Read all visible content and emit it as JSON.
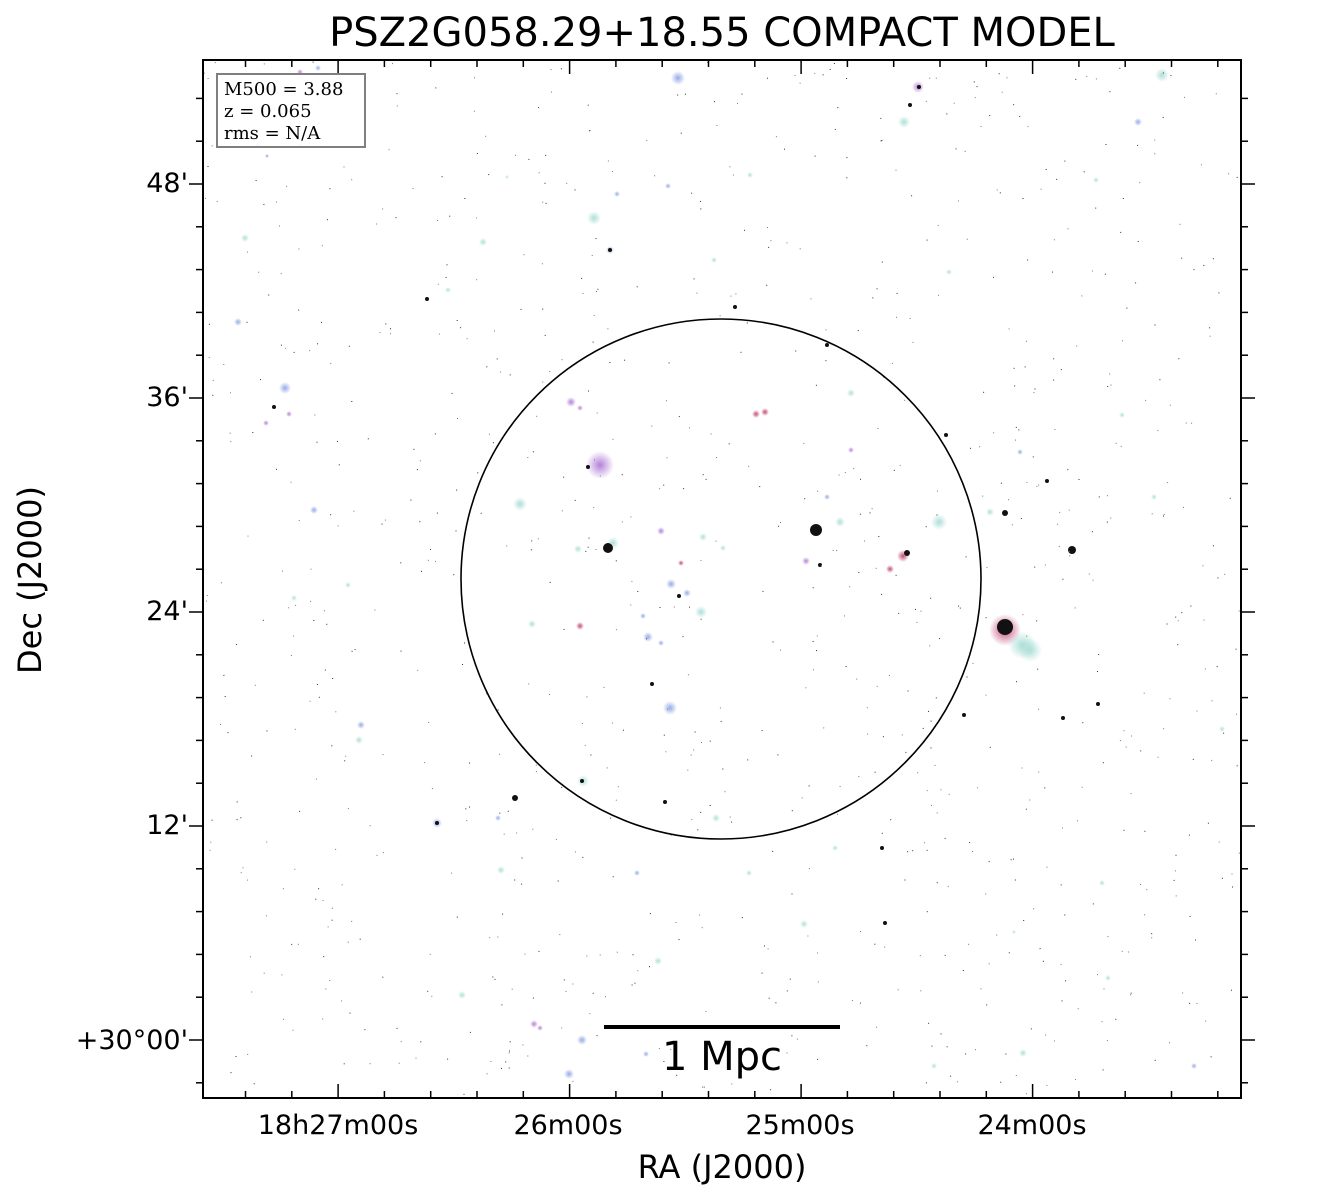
{
  "figure": {
    "title": "PSZ2G058.29+18.55 COMPACT MODEL",
    "xlabel": "RA (J2000)",
    "ylabel": "Dec (J2000)"
  },
  "axes": {
    "x_ticks": [
      "18h27m00s",
      "26m00s",
      "25m00s",
      "24m00s"
    ],
    "y_ticks": [
      "48'",
      "36'",
      "24'",
      "12'",
      "+30°00'"
    ]
  },
  "info_box": {
    "lines": [
      "M500 = 3.88",
      "z = 0.065",
      "rms = N/A"
    ]
  },
  "scalebar": {
    "label": "1 Mpc"
  },
  "colors": {
    "frame": "#000000",
    "info_box_border": "#7f7f7f",
    "source_cyan": "#a9ddd6",
    "source_blue": "#8fa6e6",
    "source_purple": "#b07ad6",
    "source_red": "#c04070",
    "source_dark": "#111111"
  }
}
